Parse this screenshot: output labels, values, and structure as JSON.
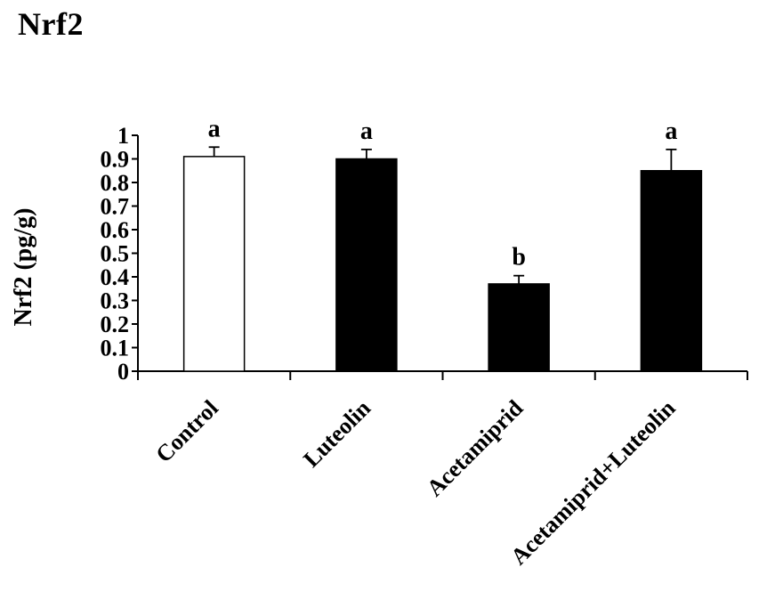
{
  "title": "Nrf2",
  "chart_data": {
    "type": "bar",
    "title": "Nrf2",
    "xlabel": "",
    "ylabel": "Nrf2 (pg/g)",
    "categories": [
      "Control",
      "Luteolin",
      "Acetamiprid",
      "Acetamiprid+Luteolin"
    ],
    "values": [
      0.91,
      0.9,
      0.37,
      0.85
    ],
    "errors": [
      0.04,
      0.04,
      0.035,
      0.09
    ],
    "significance_letters": [
      "a",
      "a",
      "b",
      "a"
    ],
    "ylim": [
      0,
      1
    ],
    "yticks": [
      0,
      0.1,
      0.2,
      0.3,
      0.4,
      0.5,
      0.6,
      0.7,
      0.8,
      0.9,
      1
    ],
    "ytick_labels": [
      "0",
      "0.1",
      "0.2",
      "0.3",
      "0.4",
      "0.5",
      "0.6",
      "0.7",
      "0.8",
      "0.9",
      "1"
    ],
    "bar_colors": [
      "#ffffff",
      "#000000",
      "#000000",
      "#000000"
    ],
    "bar_edge_color": "#000000",
    "grid": false,
    "legend": "none"
  }
}
